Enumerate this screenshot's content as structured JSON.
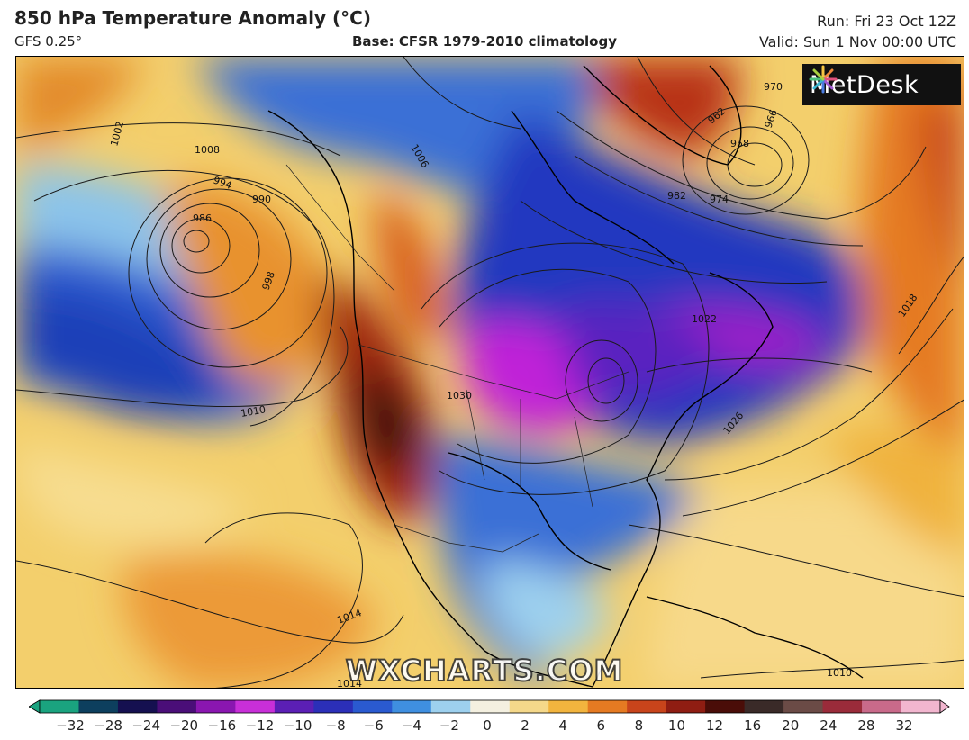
{
  "header": {
    "title": "850 hPa Temperature Anomaly (°C)",
    "model": "GFS 0.25°",
    "base": "Base: CFSR 1979-2010 climatology",
    "run": "Run: Fri 23 Oct 12Z",
    "valid": "Valid: Sun 1 Nov 00:00 UTC"
  },
  "logo": {
    "text": "MetDesk",
    "icon": "sunburst-logo-icon"
  },
  "watermark": "WXCHARTS.COM",
  "isobars": {
    "labels": [
      "1002",
      "1006",
      "1008",
      "1010",
      "1014",
      "1018",
      "1022",
      "1026",
      "1030",
      "998",
      "994",
      "990",
      "986",
      "982",
      "974",
      "970",
      "966",
      "962",
      "958",
      "1010",
      "1014"
    ]
  },
  "colorbar": {
    "ticks": [
      "−32",
      "−28",
      "−24",
      "−20",
      "−16",
      "−12",
      "−10",
      "−8",
      "−6",
      "−4",
      "−2",
      "0",
      "2",
      "4",
      "6",
      "8",
      "10",
      "12",
      "16",
      "20",
      "24",
      "28",
      "32"
    ],
    "colors": [
      "#1aa37f",
      "#0d3f5e",
      "#151050",
      "#4a0e78",
      "#8a16b0",
      "#c82fd8",
      "#5b1fb5",
      "#2b2fb8",
      "#2a5ad0",
      "#3f8fe0",
      "#9dd0ee",
      "#f4f0e0",
      "#f5d88a",
      "#f2b43e",
      "#e57a22",
      "#c8441b",
      "#8f1d12",
      "#4a0d08",
      "#3a2a28",
      "#6b4b46",
      "#9a2b3a",
      "#c96a8a",
      "#f2b6cf"
    ]
  }
}
